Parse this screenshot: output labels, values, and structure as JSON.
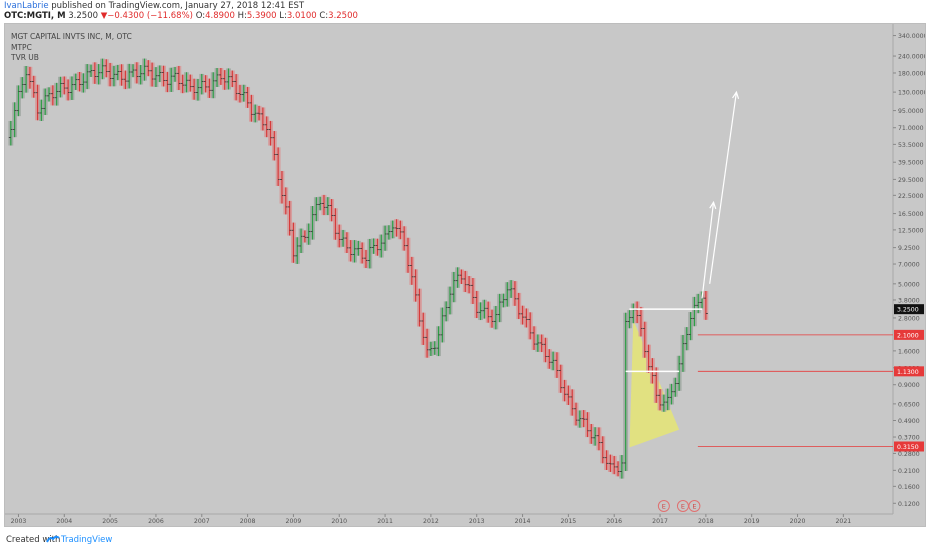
{
  "header": {
    "author": "IvanLabrie",
    "publish_text": " published on TradingView.com, January 27, 2018 12:41 EST",
    "symbol_line": "OTC:MGTI, M",
    "last_price": "3.2500",
    "change": "▼−0.4300 (−11.68%)",
    "open_label": "O:",
    "open": "4.8900",
    "high_label": "H:",
    "high": "5.3900",
    "low_label": "L:",
    "low": "3.0100",
    "close_label": "C:",
    "close": "3.2500"
  },
  "legend": {
    "title": "MGT CAPITAL INVTS INC, M, OTC",
    "line2": "MTPC",
    "line3": "TVR UB"
  },
  "footer": {
    "created_with": "Created with",
    "brand": "TradingView"
  },
  "colors": {
    "up": "#2e9e46",
    "down": "#d63b3b",
    "up_box": "#9ea7a0",
    "down_box": "#d79797",
    "triangle": "#eaea6a",
    "level_line": "#e63a3a",
    "arrow": "#ffffff",
    "axis_text": "#555555",
    "background": "#c8c8c8"
  },
  "chart_data": {
    "type": "candlestick",
    "title": "MGT CAPITAL INVTS INC, M, OTC",
    "interval": "monthly",
    "y_scale": "log",
    "y_range": [
      0.1,
      400
    ],
    "x_range": [
      "2002-10",
      "2022-02"
    ],
    "y_ticks": [
      "340.0000",
      "240.0000",
      "180.0000",
      "130.0000",
      "95.0000",
      "71.0000",
      "53.5000",
      "39.5000",
      "29.5000",
      "22.5000",
      "16.5000",
      "12.5000",
      "9.2500",
      "7.0000",
      "5.0000",
      "3.8000",
      "2.8000",
      "1.6000",
      "1.2000",
      "0.9000",
      "0.6500",
      "0.4900",
      "0.3700",
      "0.2800",
      "0.2100",
      "0.1600",
      "0.1200"
    ],
    "y_tick_values": [
      340,
      240,
      180,
      130,
      95,
      71,
      53.5,
      39.5,
      29.5,
      22.5,
      16.5,
      12.5,
      9.25,
      7,
      5,
      3.8,
      2.8,
      1.6,
      1.2,
      0.9,
      0.65,
      0.49,
      0.37,
      0.28,
      0.21,
      0.16,
      0.12
    ],
    "x_ticks": [
      "2003",
      "2004",
      "2005",
      "2006",
      "2007",
      "2008",
      "2009",
      "2010",
      "2011",
      "2012",
      "2013",
      "2014",
      "2015",
      "2016",
      "2017",
      "2018",
      "2019",
      "2020",
      "2021"
    ],
    "last_price_label": "3.2500",
    "last_price": 3.25,
    "levels": [
      {
        "label": "2.1000",
        "value": 2.1
      },
      {
        "label": "1.1300",
        "value": 1.13
      },
      {
        "label": "0.3150",
        "value": 0.315
      }
    ],
    "earnings_markers": {
      "label": "E",
      "dates": [
        "2017-02",
        "2017-07",
        "2017-10"
      ]
    },
    "anchors": [
      [
        "2002-10",
        55
      ],
      [
        "2003-03",
        200
      ],
      [
        "2003-06",
        100
      ],
      [
        "2004-01",
        140
      ],
      [
        "2004-06",
        170
      ],
      [
        "2005-01",
        180
      ],
      [
        "2005-10",
        175
      ],
      [
        "2006-06",
        170
      ],
      [
        "2006-10",
        130
      ],
      [
        "2007-03",
        155
      ],
      [
        "2007-06",
        175
      ],
      [
        "2007-10",
        130
      ],
      [
        "2008-01",
        110
      ],
      [
        "2008-06",
        75
      ],
      [
        "2008-10",
        22
      ],
      [
        "2009-01",
        9
      ],
      [
        "2009-04",
        12
      ],
      [
        "2009-08",
        20
      ],
      [
        "2009-11",
        15
      ],
      [
        "2010-01",
        11
      ],
      [
        "2010-05",
        9
      ],
      [
        "2010-08",
        7.5
      ],
      [
        "2011-01",
        11
      ],
      [
        "2011-03",
        15
      ],
      [
        "2011-06",
        10
      ],
      [
        "2011-08",
        5
      ],
      [
        "2011-12",
        1.5
      ],
      [
        "2012-03",
        2.2
      ],
      [
        "2012-06",
        4.5
      ],
      [
        "2012-09",
        5.5
      ],
      [
        "2013-01",
        3.5
      ],
      [
        "2013-06",
        2.8
      ],
      [
        "2013-09",
        4.5
      ],
      [
        "2014-01",
        3
      ],
      [
        "2014-05",
        1.8
      ],
      [
        "2014-09",
        1.2
      ],
      [
        "2015-01",
        0.7
      ],
      [
        "2015-06",
        0.42
      ],
      [
        "2015-09",
        0.3
      ],
      [
        "2015-12",
        0.22
      ],
      [
        "2016-03",
        0.25
      ],
      [
        "2016-04",
        2.5
      ],
      [
        "2016-06",
        3.4
      ],
      [
        "2016-09",
        1.6
      ],
      [
        "2016-12",
        0.75
      ],
      [
        "2017-03",
        0.7
      ],
      [
        "2017-06",
        1.2
      ],
      [
        "2017-09",
        2.8
      ],
      [
        "2017-11",
        3.5
      ],
      [
        "2017-12",
        4.4
      ],
      [
        "2018-01",
        3.25
      ]
    ],
    "projection_arrows": [
      {
        "from": [
          "2017-12",
          3.9
        ],
        "to": [
          "2018-03",
          20
        ]
      },
      {
        "from": [
          "2018-02",
          5
        ],
        "to": [
          "2018-09",
          130
        ]
      }
    ],
    "triangle": [
      [
        "2016-05",
        0.31
      ],
      [
        "2016-06",
        2.7
      ],
      [
        "2017-06",
        0.42
      ]
    ]
  }
}
